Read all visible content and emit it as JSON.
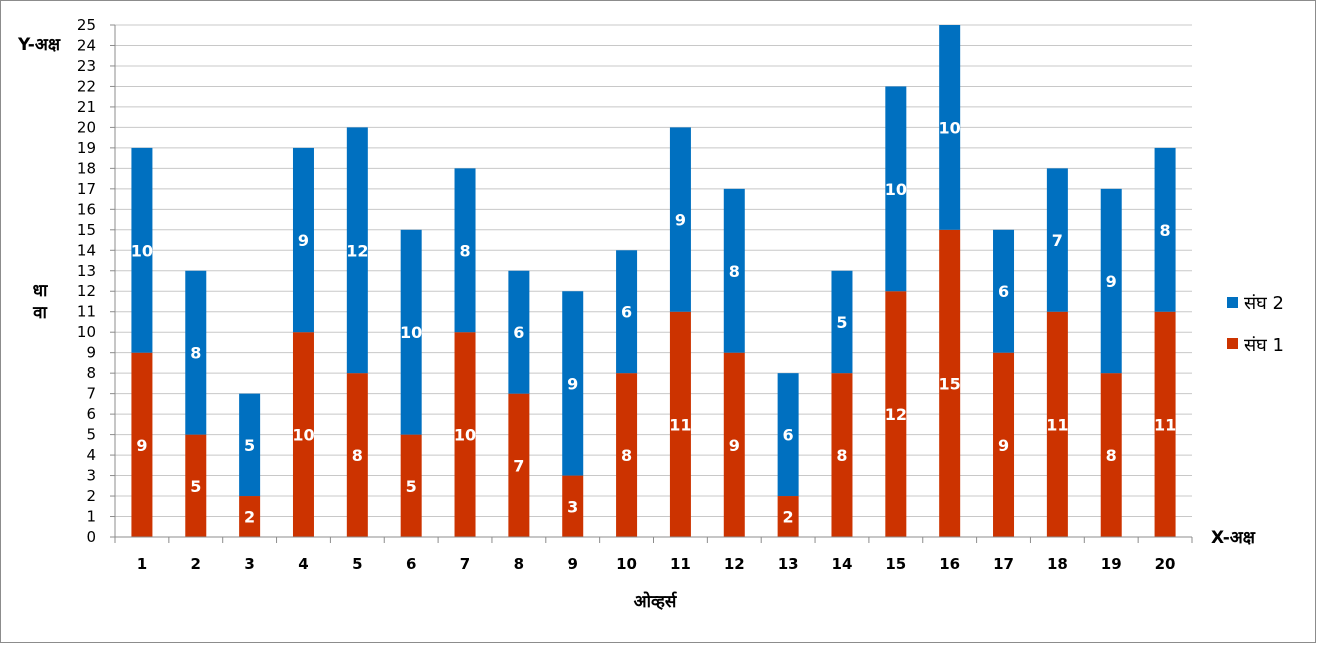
{
  "chart_data": {
    "type": "bar",
    "stacked": true,
    "categories": [
      "1",
      "2",
      "3",
      "4",
      "5",
      "6",
      "7",
      "8",
      "9",
      "10",
      "11",
      "12",
      "13",
      "14",
      "15",
      "16",
      "17",
      "18",
      "19",
      "20"
    ],
    "series": [
      {
        "name": "संघ 1",
        "color": "#cc3300",
        "values": [
          9,
          5,
          2,
          10,
          8,
          5,
          10,
          7,
          3,
          8,
          11,
          9,
          2,
          8,
          12,
          15,
          9,
          11,
          8,
          11
        ]
      },
      {
        "name": "संघ 2",
        "color": "#0070c0",
        "values": [
          10,
          8,
          5,
          9,
          12,
          10,
          8,
          6,
          9,
          6,
          9,
          8,
          6,
          5,
          10,
          10,
          6,
          7,
          9,
          8
        ]
      }
    ],
    "ylim": [
      0,
      25
    ],
    "ytick_step": 1,
    "grid": true,
    "legend_position": "right",
    "y_axis_caption": "Y-अक्ष",
    "x_axis_caption": "X-अक्ष",
    "ylabel_lines": [
      "धा",
      "वा"
    ],
    "xlabel": "ओव्हर्स"
  }
}
